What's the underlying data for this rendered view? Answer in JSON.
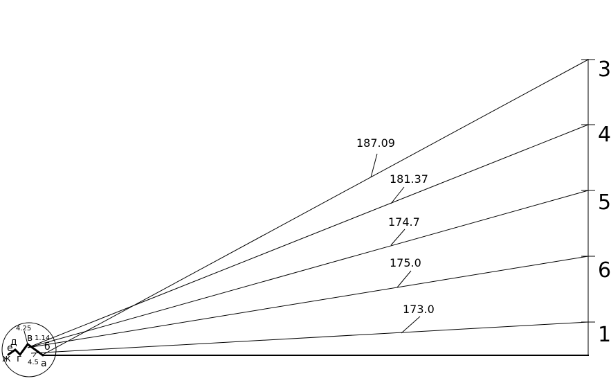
{
  "rays": [
    {
      "number": "3",
      "value": "187.09"
    },
    {
      "number": "4",
      "value": "181.37"
    },
    {
      "number": "5",
      "value": "174.7"
    },
    {
      "number": "6",
      "value": "175.0"
    },
    {
      "number": "1",
      "value": "173.0"
    }
  ],
  "points": {
    "a": "а",
    "b": "б",
    "v": "в",
    "g": "г",
    "d": "д",
    "e": "е",
    "zh": "ж"
  },
  "measures": {
    "m1": "4.25",
    "m2": "1.14",
    "m3": "4.5"
  }
}
